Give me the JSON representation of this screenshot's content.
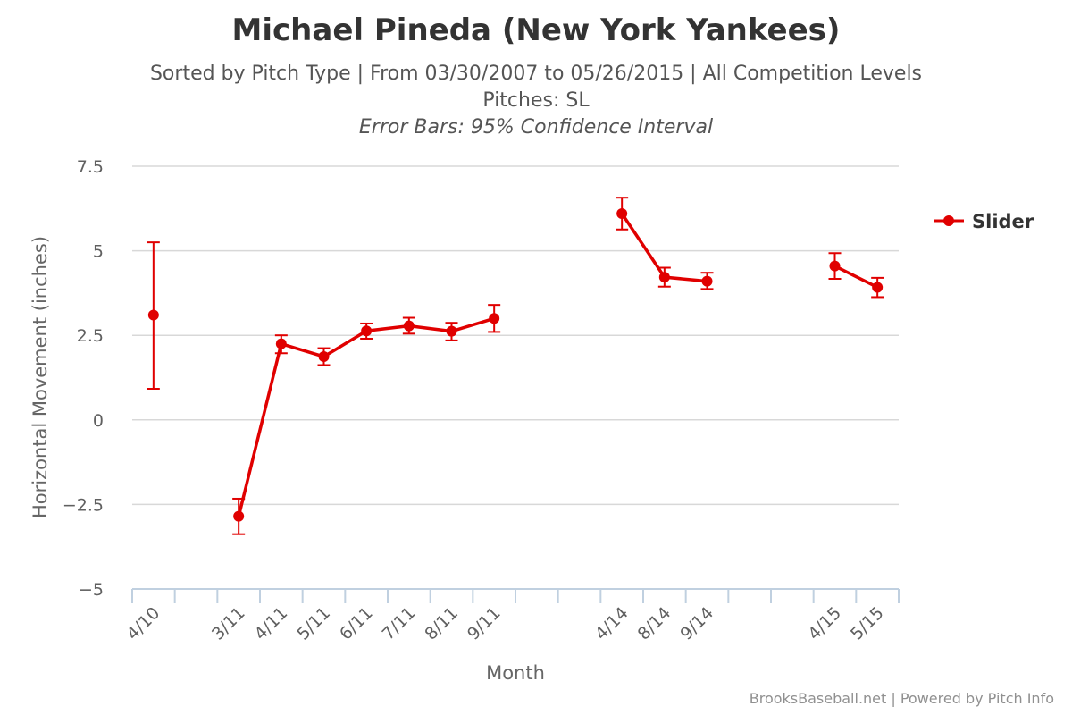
{
  "chart_data": {
    "type": "line",
    "title": "Michael Pineda (New York Yankees)",
    "subtitle": "Sorted by Pitch Type | From 03/30/2007 to 05/26/2015 | All Competition Levels",
    "subtitle2": "Pitches: SL",
    "subtitle3": "Error Bars: 95% Confidence Interval",
    "xlabel": "Month",
    "ylabel": "Horizontal Movement (inches)",
    "categories": [
      "4/10",
      "",
      "3/11",
      "4/11",
      "5/11",
      "6/11",
      "7/11",
      "8/11",
      "9/11",
      "",
      "",
      "4/14",
      "8/14",
      "9/14",
      "",
      "",
      "4/15",
      "5/15"
    ],
    "ylim": [
      -5,
      7.5
    ],
    "yticks": [
      -5,
      -2.5,
      0,
      2.5,
      5,
      7.5
    ],
    "ytick_labels": [
      "−5",
      "−2.5",
      "0",
      "2.5",
      "5",
      "7.5"
    ],
    "grid": true,
    "legend_position": "right",
    "series": [
      {
        "name": "Slider",
        "color": "#e00000",
        "values": [
          3.1,
          null,
          -2.85,
          2.25,
          1.87,
          2.63,
          2.78,
          2.62,
          3.0,
          null,
          null,
          6.1,
          4.22,
          4.1,
          null,
          null,
          4.55,
          3.92
        ],
        "error_low": [
          0.92,
          null,
          -3.38,
          1.97,
          1.62,
          2.4,
          2.55,
          2.35,
          2.6,
          null,
          null,
          5.63,
          3.94,
          3.87,
          null,
          null,
          4.17,
          3.63
        ],
        "error_high": [
          5.25,
          null,
          -2.33,
          2.5,
          2.12,
          2.85,
          3.02,
          2.87,
          3.4,
          null,
          null,
          6.57,
          4.5,
          4.35,
          null,
          null,
          4.93,
          4.2
        ]
      }
    ]
  },
  "footer": {
    "credits": "BrooksBaseball.net | Powered by Pitch Info"
  }
}
